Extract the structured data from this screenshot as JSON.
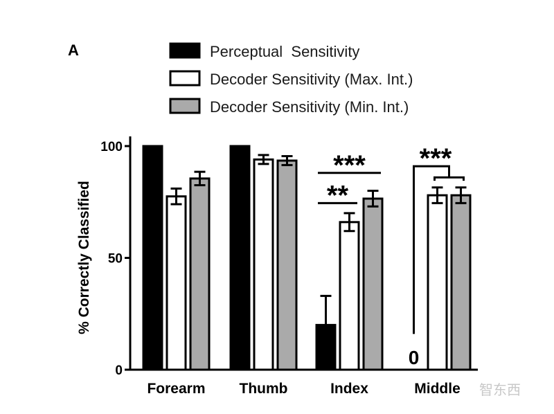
{
  "panel_label": "A",
  "watermark": "智东西",
  "chart_data": {
    "type": "bar",
    "title": "",
    "xlabel": "",
    "ylabel": "% Correctly Classified",
    "ylim": [
      0,
      100
    ],
    "yticks": [
      0,
      50,
      100
    ],
    "categories": [
      "Forearm",
      "Thumb",
      "Index",
      "Middle"
    ],
    "series": [
      {
        "name": "Perceptual  Sensitivity",
        "color": "#000000",
        "values": [
          100,
          100,
          20,
          0
        ],
        "errors": [
          0,
          0,
          13,
          0
        ]
      },
      {
        "name": "Decoder Sensitivity (Max. Int.)",
        "color": "#ffffff",
        "values": [
          77.5,
          94,
          66,
          78
        ],
        "errors": [
          3.5,
          2,
          4,
          3.5
        ]
      },
      {
        "name": "Decoder Sensitivity (Min. Int.)",
        "color": "#aaaaaa",
        "values": [
          85.5,
          93.5,
          76.5,
          78
        ],
        "errors": [
          3,
          2,
          3.5,
          3.5
        ]
      }
    ],
    "annotations": [
      {
        "text": "***",
        "category": "Index",
        "from_series": 0,
        "to_series": 2,
        "level": 88
      },
      {
        "text": "**",
        "category": "Index",
        "from_series": 0,
        "to_series": 1,
        "level": 74.5
      },
      {
        "text": "***",
        "category": "Middle",
        "from_series": 0,
        "to_series": "1-2",
        "level": 91
      }
    ],
    "data_labels": [
      {
        "text": "0",
        "category": "Middle",
        "series": 0
      }
    ]
  }
}
